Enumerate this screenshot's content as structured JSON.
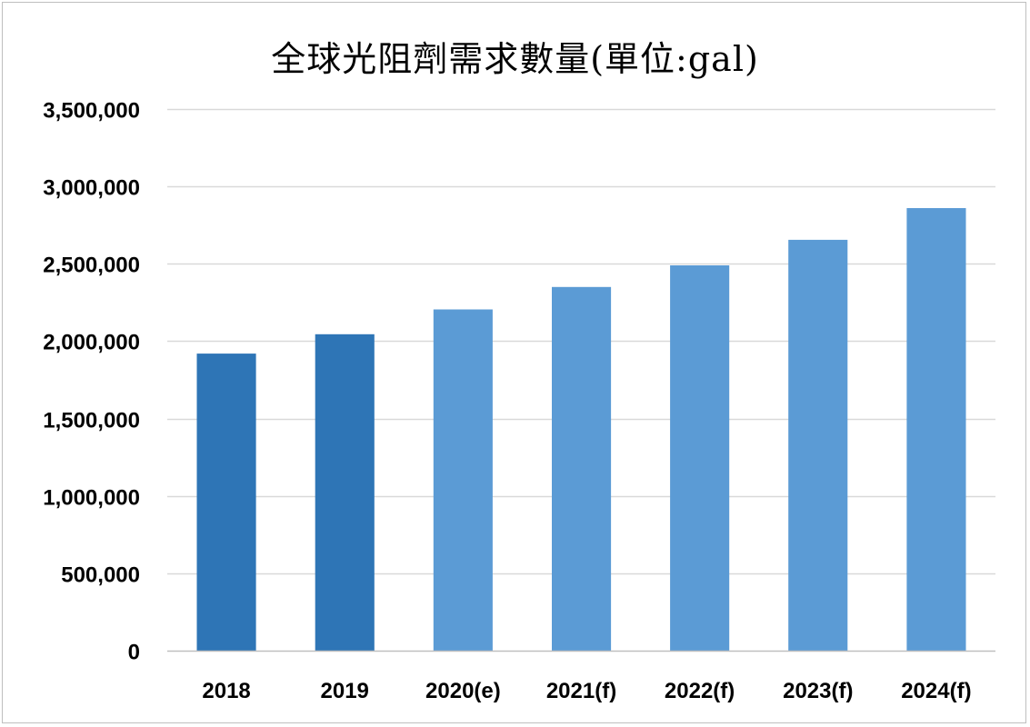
{
  "chart_data": {
    "type": "bar",
    "title": "全球光阻劑需求數量(單位:gal)",
    "categories": [
      "2018",
      "2019",
      "2020(e)",
      "2021(f)",
      "2022(f)",
      "2023(f)",
      "2024(f)"
    ],
    "values": [
      1920000,
      2045000,
      2205000,
      2350000,
      2490000,
      2655000,
      2860000
    ],
    "bar_colors": [
      "#2e75b6",
      "#2e75b6",
      "#5b9bd5",
      "#5b9bd5",
      "#5b9bd5",
      "#5b9bd5",
      "#5b9bd5"
    ],
    "xlabel": "",
    "ylabel": "",
    "ylim": [
      0,
      3500000
    ],
    "y_ticks": [
      0,
      500000,
      1000000,
      1500000,
      2000000,
      2500000,
      3000000,
      3500000
    ],
    "y_tick_labels": [
      "0",
      "500,000",
      "1,000,000",
      "1,500,000",
      "2,000,000",
      "2,500,000",
      "3,000,000",
      "3,500,000"
    ],
    "grid": true,
    "legend": "none",
    "gridline_color": "#d9d9d9",
    "axis_color": "#bfbfbf"
  }
}
